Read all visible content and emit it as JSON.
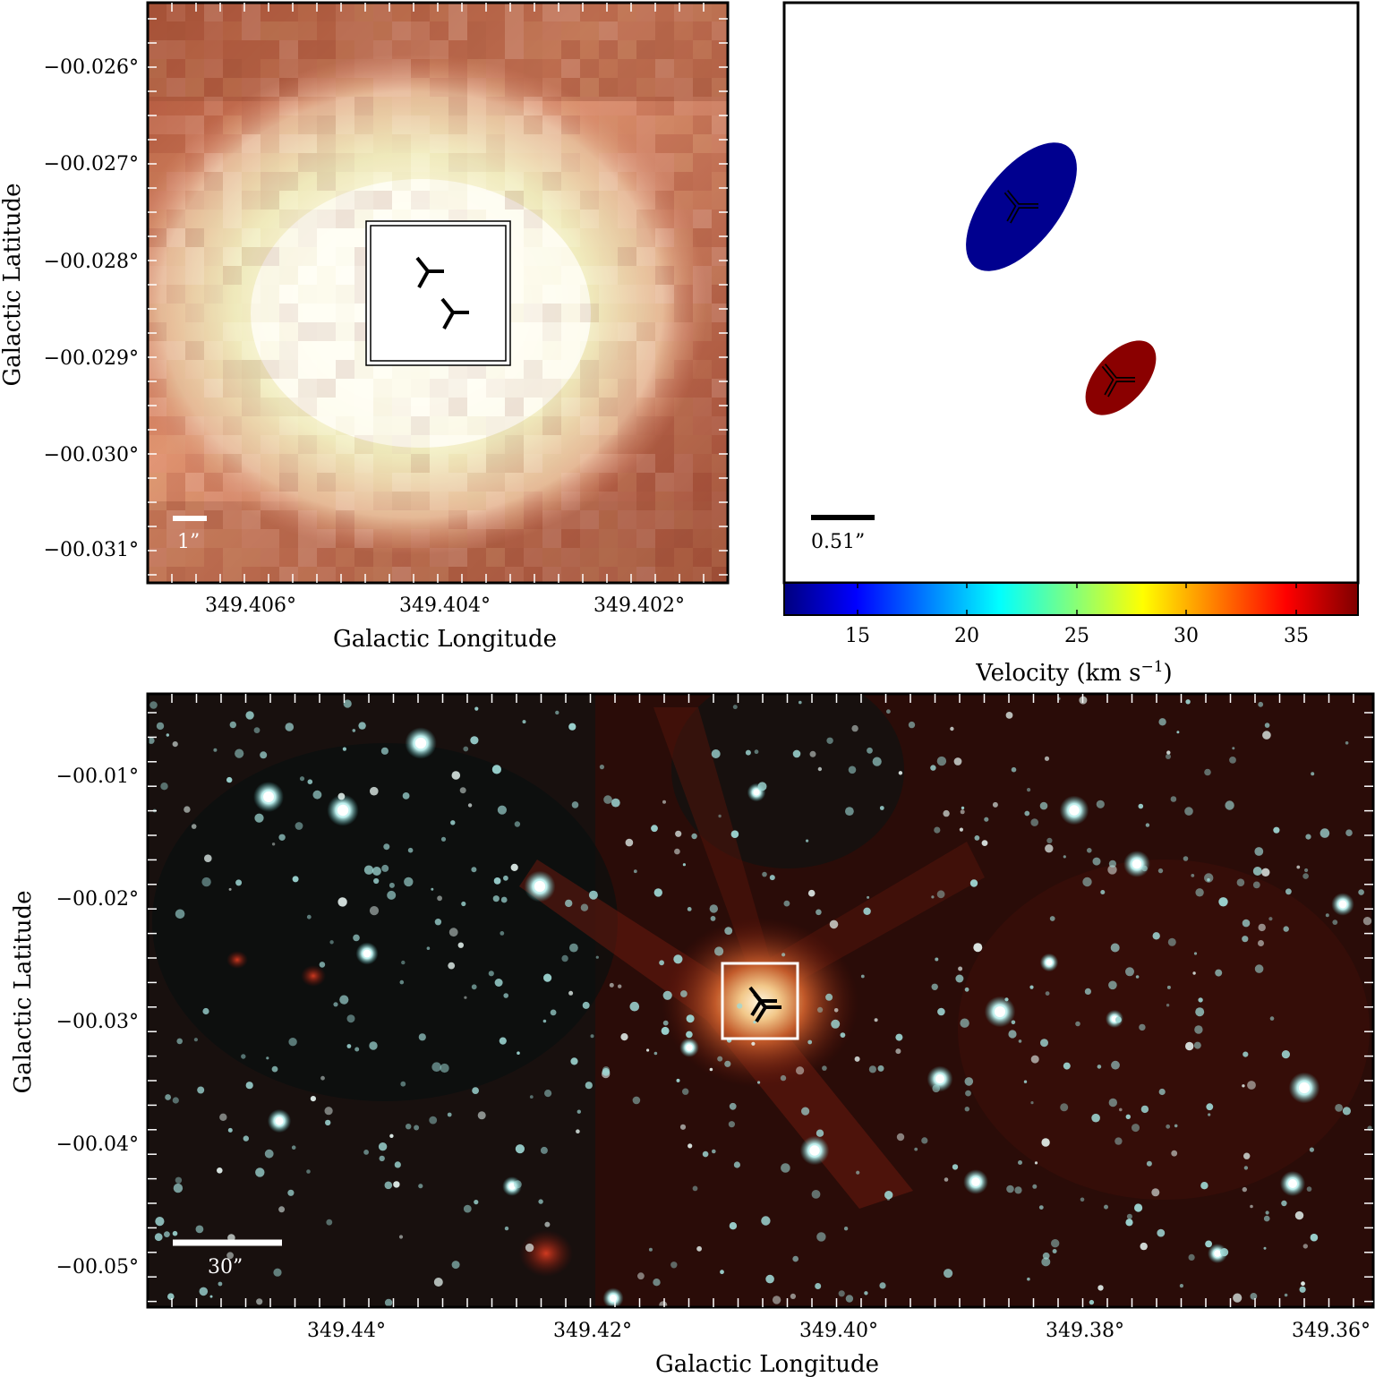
{
  "panels": {
    "zoom_image": {
      "y_ticks": [
        "−00.026°",
        "−00.027°",
        "−00.028°",
        "−00.029°",
        "−00.030°",
        "−00.031°"
      ],
      "x_ticks": [
        "349.406°",
        "349.404°",
        "349.402°"
      ],
      "x_label": "Galactic Longitude",
      "y_label": "Galactic Latitude",
      "scale_bar_label": "1”"
    },
    "velocity_map": {
      "scale_bar_label": "0.51”",
      "colorbar_ticks": [
        "15",
        "20",
        "25",
        "30",
        "35"
      ],
      "colorbar_label_main": "Velocity (km s",
      "colorbar_label_sup": "−1",
      "colorbar_label_end": ")",
      "components": [
        {
          "velocity": 12.5,
          "color": "#00008f"
        },
        {
          "velocity": 37.5,
          "color": "#8a0000"
        }
      ]
    },
    "wide_field": {
      "y_ticks": [
        "−00.01°",
        "−00.02°",
        "−00.03°",
        "−00.04°",
        "−00.05°"
      ],
      "x_ticks": [
        "349.44°",
        "349.42°",
        "349.40°",
        "349.38°",
        "349.36°"
      ],
      "x_label": "Galactic Longitude",
      "y_label": "Galactic Latitude",
      "scale_bar_label": "30”"
    }
  },
  "colors": {
    "colorbar_jet": [
      "#00007f",
      "#0000ff",
      "#007fff",
      "#00ffff",
      "#7fff7f",
      "#ffff00",
      "#ff7f00",
      "#ff0000",
      "#7f0000"
    ]
  }
}
